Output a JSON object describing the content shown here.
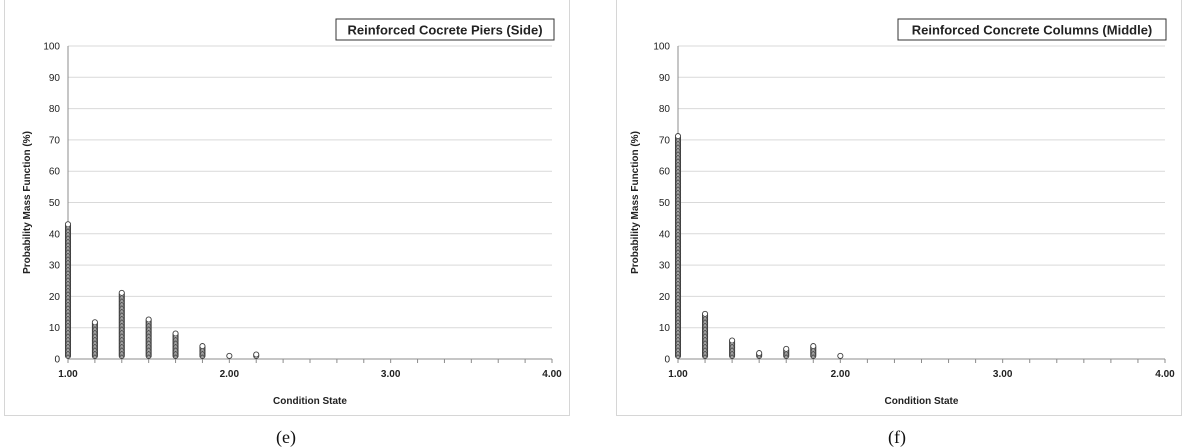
{
  "chart_data": [
    {
      "type": "scatter",
      "caption": "(e)",
      "title": "Reinforced Cocrete Piers (Side)",
      "xlabel": "Condition State",
      "ylabel": "Probability Mass Function (%)",
      "xlim": [
        1,
        4
      ],
      "ylim": [
        0,
        100
      ],
      "x_ticks": [
        "1.00",
        "2.00",
        "3.00",
        "4.00"
      ],
      "y_ticks": [
        "0",
        "10",
        "20",
        "30",
        "40",
        "50",
        "60",
        "70",
        "80",
        "90",
        "100"
      ],
      "grid": "horizontal",
      "marker": "open-circle",
      "point_color": "#404040",
      "grid_color": "#d9d9d9",
      "points": [
        {
          "x": 1.0,
          "y": 42.5
        },
        {
          "x": 1.1667,
          "y": 11.0
        },
        {
          "x": 1.3333,
          "y": 20.5
        },
        {
          "x": 1.5,
          "y": 12.0
        },
        {
          "x": 1.6667,
          "y": 7.5
        },
        {
          "x": 1.8333,
          "y": 3.5
        },
        {
          "x": 2.0,
          "y": 0.5
        },
        {
          "x": 2.1667,
          "y": 1.0
        }
      ]
    },
    {
      "type": "scatter",
      "caption": "(f)",
      "title": "Reinforced Concrete Columns (Middle)",
      "xlabel": "Condition State",
      "ylabel": "Probability Mass Function (%)",
      "xlim": [
        1,
        4
      ],
      "ylim": [
        0,
        100
      ],
      "x_ticks": [
        "1.00",
        "2.00",
        "3.00",
        "4.00"
      ],
      "y_ticks": [
        "0",
        "10",
        "20",
        "30",
        "40",
        "50",
        "60",
        "70",
        "80",
        "90",
        "100"
      ],
      "grid": "horizontal",
      "marker": "open-circle",
      "point_color": "#404040",
      "grid_color": "#d9d9d9",
      "points": [
        {
          "x": 1.0,
          "y": 70.5
        },
        {
          "x": 1.1667,
          "y": 14.0
        },
        {
          "x": 1.3333,
          "y": 5.5
        },
        {
          "x": 1.5,
          "y": 1.5
        },
        {
          "x": 1.6667,
          "y": 2.5
        },
        {
          "x": 1.8333,
          "y": 3.5
        },
        {
          "x": 2.0,
          "y": 0.5
        }
      ]
    }
  ]
}
